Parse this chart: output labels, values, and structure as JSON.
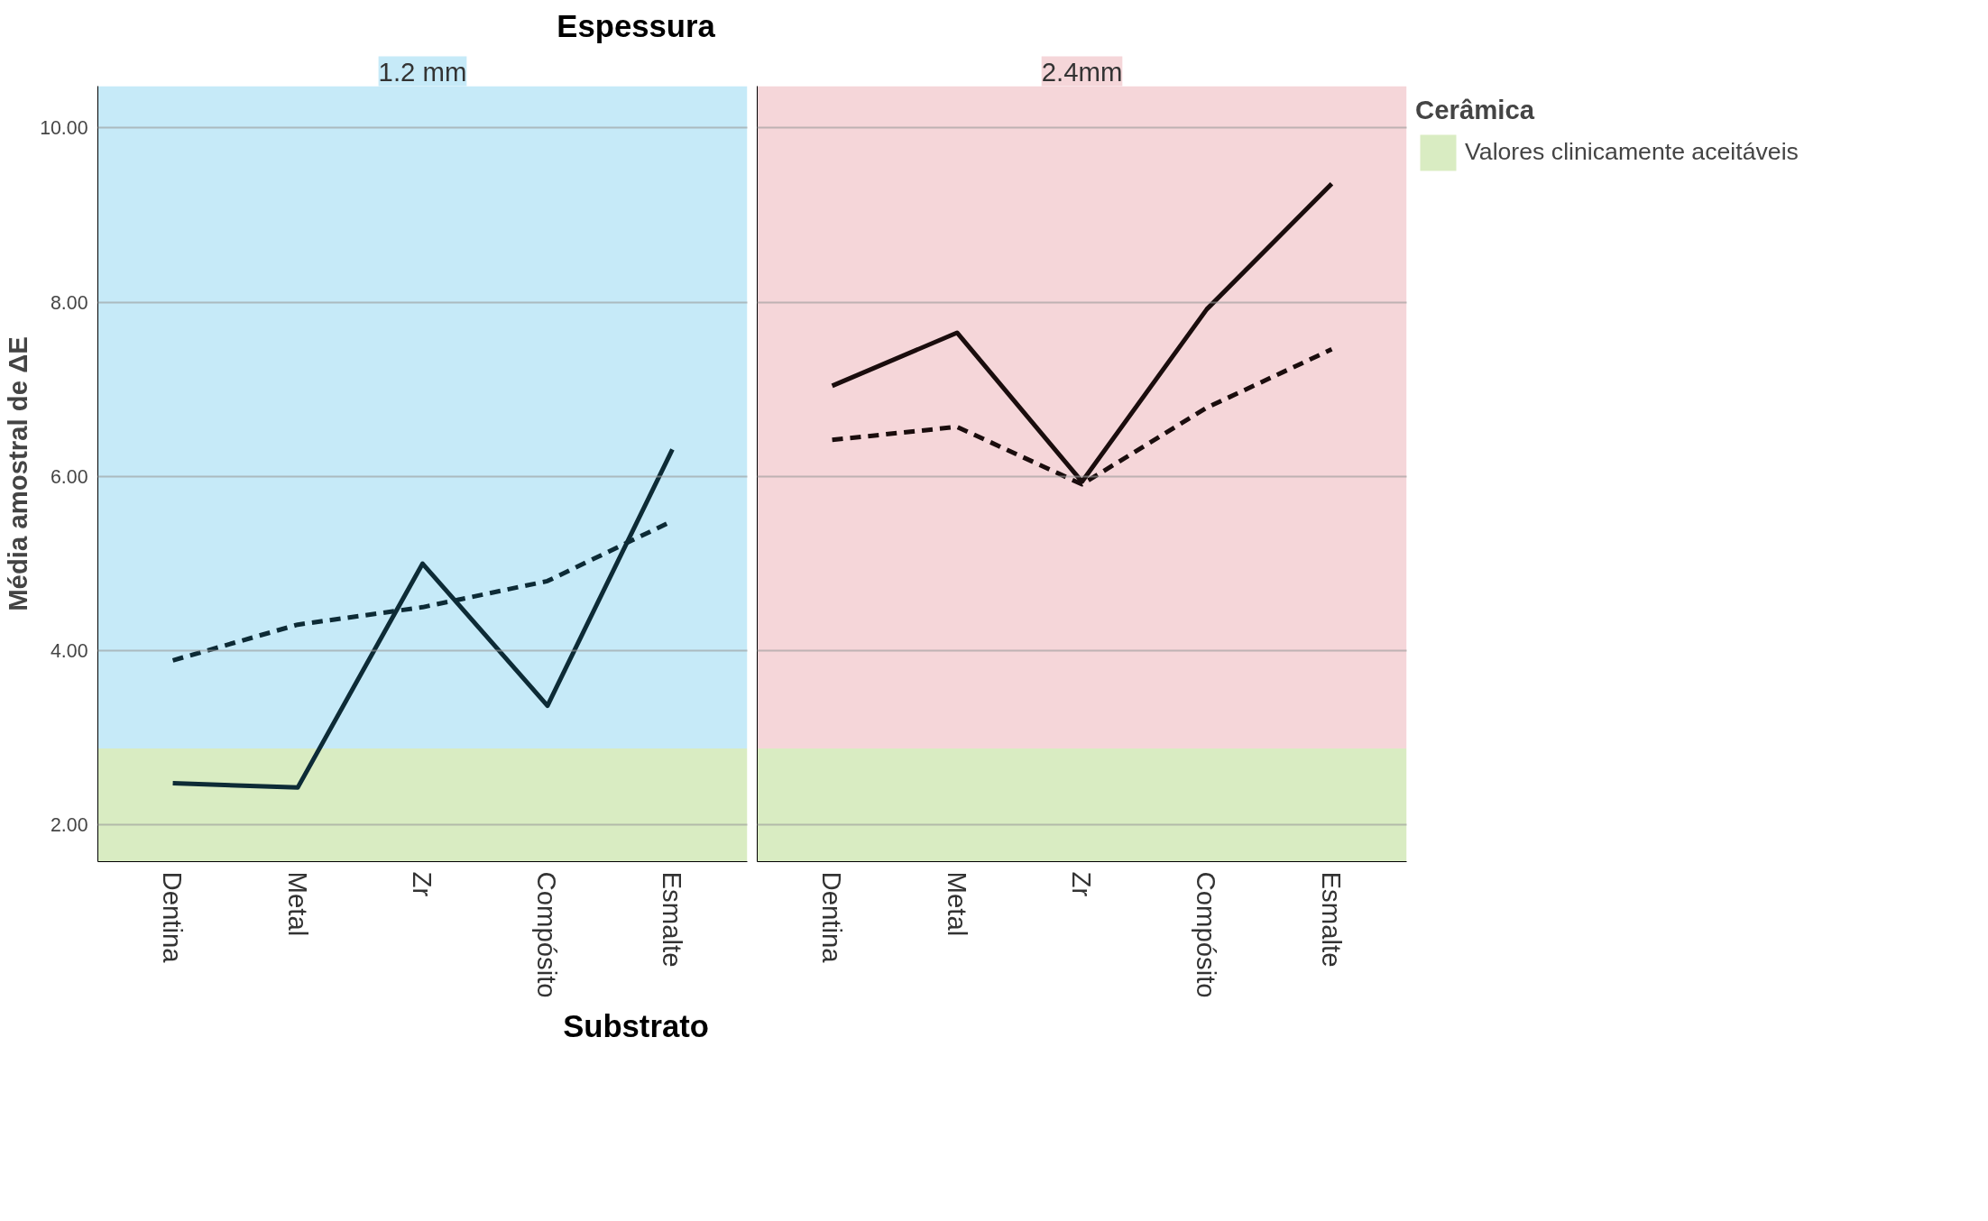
{
  "chart_data": [
    {
      "type": "line",
      "title": "1.2 mm",
      "annotations": [
        "Espessura"
      ],
      "xlabel": "Substrato",
      "ylabel": "Média amostral de ΔE",
      "categories": [
        "Dentina",
        "Metal",
        "Zr",
        "Compósito",
        "Esmalte"
      ],
      "series": [
        {
          "color": "#0d2b36",
          "line_style": "solid",
          "values": [
            2.48,
            2.43,
            5.0,
            3.37,
            6.31
          ]
        },
        {
          "color": "#0d2b36",
          "line_style": "dashed",
          "values": [
            3.89,
            4.3,
            4.5,
            4.8,
            5.49
          ]
        }
      ],
      "ylim": [
        1.58,
        10.48
      ],
      "yticks": [
        {
          "value": 2,
          "label": "2.00"
        },
        {
          "value": 4,
          "label": "4.00"
        },
        {
          "value": 6,
          "label": "6.00"
        },
        {
          "value": 8,
          "label": "8.00"
        },
        {
          "value": 10,
          "label": "10.00"
        }
      ],
      "bands": [
        {
          "axis": "y",
          "from": 2.88,
          "to": 10.48,
          "color": "#c6eaf8"
        },
        {
          "axis": "y",
          "from": 1.58,
          "to": 2.88,
          "color": "#d9ecc2"
        }
      ],
      "grid": "y",
      "legend": false
    },
    {
      "type": "line",
      "title": "2.4mm",
      "legend_title": "Cerâmica",
      "categories": [
        "Dentina",
        "Metal",
        "Zr",
        "Compósito",
        "Esmalte"
      ],
      "series": [
        {
          "color": "#1a0d0d",
          "line_style": "solid",
          "values": [
            7.04,
            7.65,
            5.94,
            7.92,
            9.36
          ]
        },
        {
          "color": "#1a0d0d",
          "line_style": "dashed",
          "values": [
            6.42,
            6.57,
            5.91,
            6.79,
            7.46
          ]
        }
      ],
      "ylim": [
        1.58,
        10.48
      ],
      "yticks": [
        2,
        4,
        6,
        8,
        10
      ],
      "bands": [
        {
          "axis": "y",
          "from": 2.88,
          "to": 10.48,
          "color": "#f5d6d9"
        },
        {
          "axis": "y",
          "from": 1.58,
          "to": 2.88,
          "color": "#d9ecc2",
          "label": "Valores clinicamente aceitáveis"
        }
      ],
      "grid": "y",
      "tick_labels": "x",
      "legend": "right"
    }
  ]
}
